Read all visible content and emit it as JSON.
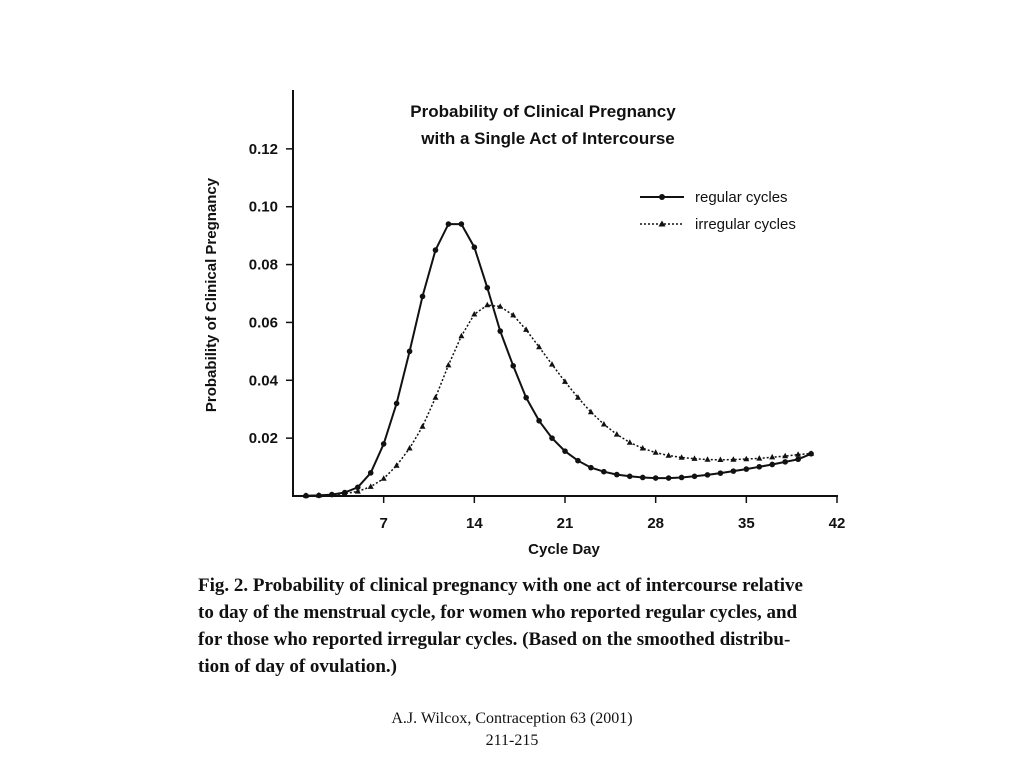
{
  "chart_data": {
    "type": "line",
    "title_lines": [
      "Probability of Clinical Pregnancy",
      "with a Single Act of Intercourse"
    ],
    "xlabel": "Cycle Day",
    "ylabel": "Probability of Clinical Pregnancy",
    "xlim": [
      0,
      42
    ],
    "ylim": [
      0,
      0.14
    ],
    "x_ticks": [
      7,
      14,
      21,
      28,
      35,
      42
    ],
    "x_tick_labels": [
      "7",
      "14",
      "21",
      "28",
      "35",
      "42"
    ],
    "y_ticks": [
      0.02,
      0.04,
      0.06,
      0.08,
      0.1,
      0.12
    ],
    "y_tick_labels": [
      "0.02",
      "0.04",
      "0.06",
      "0.08",
      "0.10",
      "0.12"
    ],
    "legend_position": "top-right",
    "series": [
      {
        "name": "regular cycles",
        "style": "solid",
        "marker": "circle",
        "color": "#111111",
        "x": [
          1,
          2,
          3,
          4,
          5,
          6,
          7,
          8,
          9,
          10,
          11,
          12,
          13,
          14,
          15,
          16,
          17,
          18,
          19,
          20,
          21,
          22,
          23,
          24,
          25,
          26,
          27,
          28,
          29,
          30,
          31,
          32,
          33,
          34,
          35,
          36,
          37,
          38,
          39,
          40
        ],
        "y": [
          0.0001,
          0.0002,
          0.0005,
          0.0012,
          0.003,
          0.008,
          0.018,
          0.032,
          0.05,
          0.069,
          0.085,
          0.094,
          0.094,
          0.086,
          0.072,
          0.057,
          0.045,
          0.034,
          0.026,
          0.02,
          0.0155,
          0.0122,
          0.0098,
          0.0084,
          0.0074,
          0.0068,
          0.0064,
          0.0062,
          0.0062,
          0.0064,
          0.0068,
          0.0073,
          0.0079,
          0.0086,
          0.0093,
          0.0101,
          0.0109,
          0.0118,
          0.0127,
          0.0146
        ]
      },
      {
        "name": "irregular cycles",
        "style": "dotted",
        "marker": "triangle",
        "color": "#111111",
        "x": [
          1,
          2,
          3,
          4,
          5,
          6,
          7,
          8,
          9,
          10,
          11,
          12,
          13,
          14,
          15,
          16,
          17,
          18,
          19,
          20,
          21,
          22,
          23,
          24,
          25,
          26,
          27,
          28,
          29,
          30,
          31,
          32,
          33,
          34,
          35,
          36,
          37,
          38,
          39,
          40
        ],
        "y": [
          0.0001,
          0.0002,
          0.0004,
          0.0008,
          0.0016,
          0.0032,
          0.006,
          0.0105,
          0.0165,
          0.024,
          0.034,
          0.0452,
          0.0553,
          0.0628,
          0.066,
          0.0655,
          0.0625,
          0.0575,
          0.0515,
          0.0455,
          0.0395,
          0.034,
          0.029,
          0.0248,
          0.0213,
          0.0185,
          0.0165,
          0.015,
          0.014,
          0.0133,
          0.0129,
          0.0126,
          0.0125,
          0.0126,
          0.0128,
          0.013,
          0.0134,
          0.0138,
          0.0143,
          0.0147
        ]
      }
    ]
  },
  "caption": {
    "lines": [
      "Fig. 2. Probability of clinical pregnancy with one act of intercourse relative",
      "to day of the menstrual cycle, for women who reported regular cycles, and",
      "for those who reported irregular cycles. (Based on the smoothed distribu-",
      "tion of day of ovulation.)"
    ]
  },
  "source": {
    "line1": "A.J. Wilcox, Contraception 63 (2001)",
    "line2": "211-215"
  }
}
